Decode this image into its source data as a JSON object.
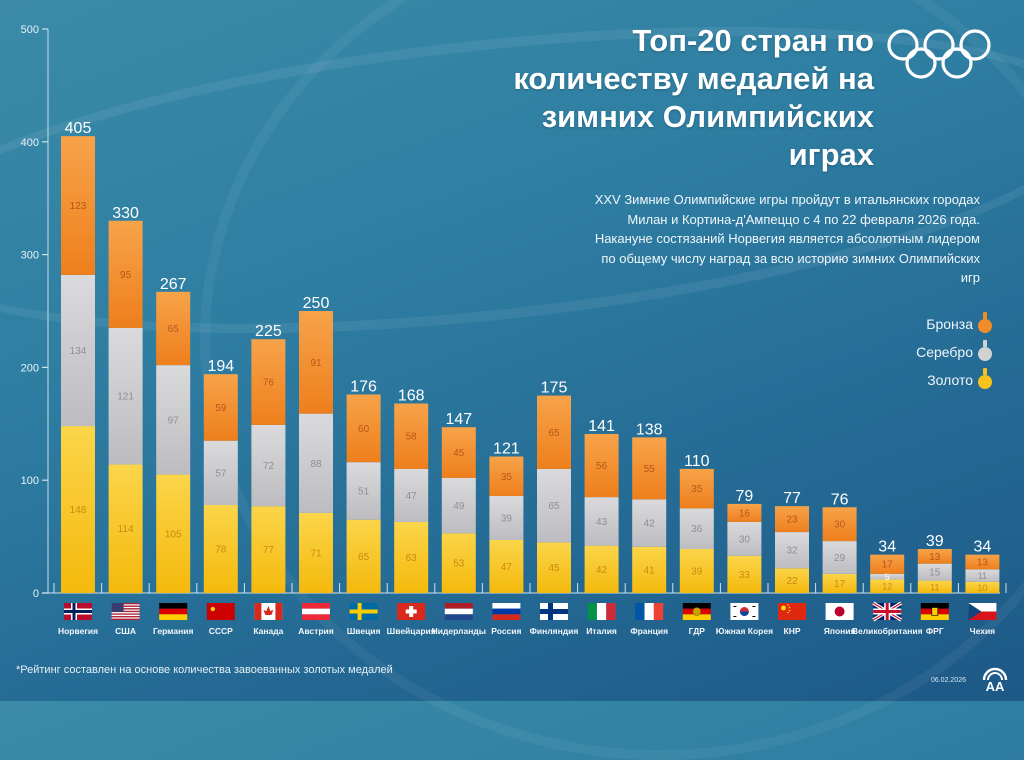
{
  "header": {
    "title": "Топ-20 стран по количеству медалей на зимних Олимпийских играх",
    "description": "XXV Зимние Олимпийские игры пройдут в итальянских городах Милан и Кортина-д'Ампеццо с 4 по 22 февраля 2026 года. Накануне состязаний Норвегия является абсолютным лидером по общему числу наград за всю историю зимних Олимпийских игр",
    "logo_icon": "olympic-rings-icon"
  },
  "legend": {
    "bronze": "Бронза",
    "silver": "Серебро",
    "gold": "Золото"
  },
  "colors": {
    "gold": "#f7c21b",
    "silver": "#c9c9cc",
    "bronze": "#f28c28",
    "gold_text": "#c98a10",
    "silver_text": "#8f8f94",
    "bronze_text": "#b5571a",
    "axis": "#cfe3ec"
  },
  "footer": {
    "note": "*Рейтинг составлен на основе количества завоеванных золотых медалей",
    "date": "06.02.2026",
    "agency_icon": "aa-agency-logo-icon"
  },
  "chart_data": {
    "type": "bar",
    "stacked": true,
    "title": "Топ-20 стран по количеству медалей на зимних Олимпийских играх",
    "xlabel": "",
    "ylabel": "",
    "ylim": [
      0,
      500
    ],
    "yticks": [
      0,
      100,
      200,
      300,
      400,
      500
    ],
    "grid": false,
    "legend_position": "right",
    "categories": [
      "Норвегия",
      "США",
      "Германия",
      "СССР",
      "Канада",
      "Австрия",
      "Швеция",
      "Швейцария",
      "Нидерланды",
      "Россия",
      "Финляндия",
      "Италия",
      "Франция",
      "ГДР",
      "Южная Корея",
      "КНР",
      "Япония",
      "Великобритания",
      "ФРГ",
      "Чехия"
    ],
    "flags": [
      "norway-flag-icon",
      "usa-flag-icon",
      "germany-flag-icon",
      "ussr-flag-icon",
      "canada-flag-icon",
      "austria-flag-icon",
      "sweden-flag-icon",
      "switzerland-flag-icon",
      "netherlands-flag-icon",
      "russia-flag-icon",
      "finland-flag-icon",
      "italy-flag-icon",
      "france-flag-icon",
      "gdr-flag-icon",
      "south-korea-flag-icon",
      "china-flag-icon",
      "japan-flag-icon",
      "uk-flag-icon",
      "frg-flag-icon",
      "czechia-flag-icon"
    ],
    "series": [
      {
        "name": "Золото",
        "key": "gold",
        "values": [
          148,
          114,
          105,
          78,
          77,
          71,
          65,
          63,
          53,
          47,
          45,
          42,
          41,
          39,
          33,
          22,
          17,
          12,
          11,
          10
        ]
      },
      {
        "name": "Серебро",
        "key": "silver",
        "values": [
          134,
          121,
          97,
          57,
          72,
          88,
          51,
          47,
          49,
          39,
          65,
          43,
          42,
          36,
          30,
          32,
          29,
          5,
          15,
          11
        ]
      },
      {
        "name": "Бронза",
        "key": "bronze",
        "values": [
          123,
          95,
          65,
          59,
          76,
          91,
          60,
          58,
          45,
          35,
          65,
          56,
          55,
          35,
          16,
          23,
          30,
          17,
          13,
          13
        ]
      }
    ],
    "totals": [
      405,
      330,
      267,
      194,
      225,
      250,
      176,
      168,
      147,
      121,
      175,
      141,
      138,
      110,
      79,
      77,
      76,
      34,
      39,
      34
    ]
  }
}
